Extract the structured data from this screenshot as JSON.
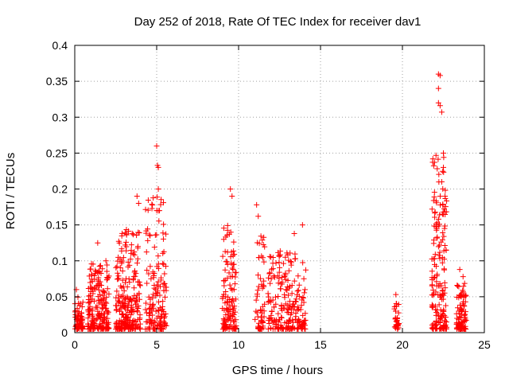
{
  "chart_data": {
    "type": "scatter",
    "title": "Day 252 of 2018, Rate Of TEC Index for receiver dav1",
    "xlabel": "GPS time / hours",
    "ylabel": "ROTI / TECUs",
    "xlim": [
      0,
      25
    ],
    "ylim": [
      0,
      0.4
    ],
    "xticks": [
      "0",
      "5",
      "10",
      "15",
      "20",
      "25"
    ],
    "yticks": [
      "0",
      "0.05",
      "0.1",
      "0.15",
      "0.2",
      "0.25",
      "0.3",
      "0.35",
      "0.4"
    ],
    "grid": true,
    "marker": "+",
    "color": "#ff0000",
    "clusters": [
      {
        "x_start": 0.0,
        "x_end": 0.5,
        "y_min": 0.005,
        "y_max": 0.065,
        "count": 60
      },
      {
        "x_start": 0.8,
        "x_end": 2.1,
        "y_min": 0.005,
        "y_max": 0.13,
        "count": 200
      },
      {
        "x_start": 2.5,
        "x_end": 4.0,
        "y_min": 0.005,
        "y_max": 0.19,
        "count": 240
      },
      {
        "x_start": 4.3,
        "x_end": 5.6,
        "y_min": 0.005,
        "y_max": 0.26,
        "count": 160
      },
      {
        "x_start": 9.0,
        "x_end": 9.9,
        "y_min": 0.005,
        "y_max": 0.2,
        "count": 130
      },
      {
        "x_start": 11.0,
        "x_end": 11.6,
        "y_min": 0.005,
        "y_max": 0.18,
        "count": 60
      },
      {
        "x_start": 11.8,
        "x_end": 14.1,
        "y_min": 0.005,
        "y_max": 0.15,
        "count": 220
      },
      {
        "x_start": 19.5,
        "x_end": 19.8,
        "y_min": 0.005,
        "y_max": 0.055,
        "count": 30
      },
      {
        "x_start": 21.8,
        "x_end": 22.7,
        "y_min": 0.005,
        "y_max": 0.36,
        "count": 180
      },
      {
        "x_start": 23.3,
        "x_end": 23.9,
        "y_min": 0.005,
        "y_max": 0.09,
        "count": 100
      }
    ],
    "peaks": [
      {
        "x": 0.1,
        "y": 0.06
      },
      {
        "x": 1.4,
        "y": 0.125
      },
      {
        "x": 1.9,
        "y": 0.1
      },
      {
        "x": 3.8,
        "y": 0.19
      },
      {
        "x": 3.9,
        "y": 0.18
      },
      {
        "x": 4.6,
        "y": 0.135
      },
      {
        "x": 5.0,
        "y": 0.26
      },
      {
        "x": 5.05,
        "y": 0.233
      },
      {
        "x": 5.1,
        "y": 0.23
      },
      {
        "x": 5.1,
        "y": 0.2
      },
      {
        "x": 5.0,
        "y": 0.17
      },
      {
        "x": 9.5,
        "y": 0.2
      },
      {
        "x": 9.6,
        "y": 0.19
      },
      {
        "x": 11.1,
        "y": 0.178
      },
      {
        "x": 11.2,
        "y": 0.162
      },
      {
        "x": 13.4,
        "y": 0.138
      },
      {
        "x": 13.9,
        "y": 0.15
      },
      {
        "x": 22.2,
        "y": 0.36
      },
      {
        "x": 22.3,
        "y": 0.358
      },
      {
        "x": 22.2,
        "y": 0.34
      },
      {
        "x": 22.2,
        "y": 0.32
      },
      {
        "x": 22.3,
        "y": 0.316
      },
      {
        "x": 22.4,
        "y": 0.307
      },
      {
        "x": 22.5,
        "y": 0.25
      },
      {
        "x": 22.5,
        "y": 0.23
      },
      {
        "x": 22.4,
        "y": 0.21
      },
      {
        "x": 22.6,
        "y": 0.19
      },
      {
        "x": 22.5,
        "y": 0.165
      },
      {
        "x": 22.1,
        "y": 0.145
      },
      {
        "x": 23.5,
        "y": 0.088
      },
      {
        "x": 23.7,
        "y": 0.078
      },
      {
        "x": 19.6,
        "y": 0.053
      }
    ]
  }
}
